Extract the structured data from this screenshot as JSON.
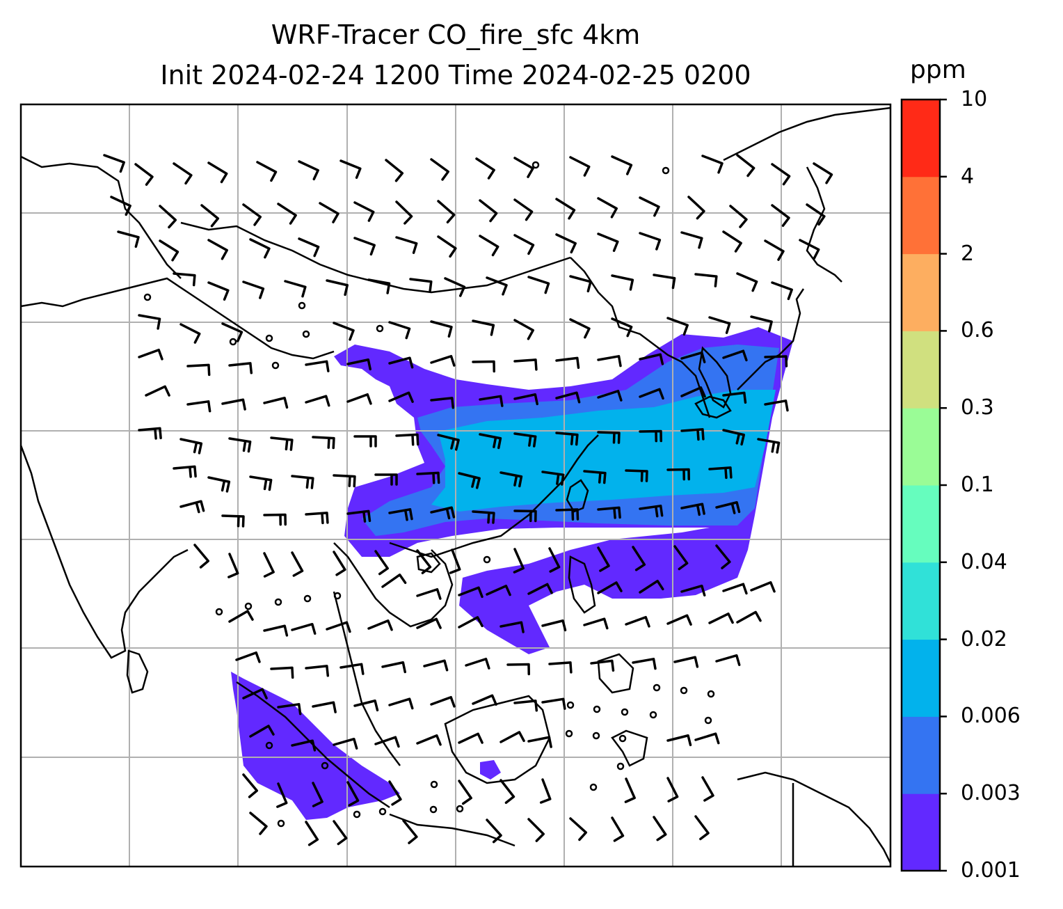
{
  "title": {
    "line1": "WRF-Tracer CO_fire_sfc 4km",
    "line2": "Init 2024-02-24 1200 Time 2024-02-25 0200"
  },
  "colorbar": {
    "unit": "ppm",
    "levels": [
      "0.001",
      "0.003",
      "0.006",
      "0.02",
      "0.04",
      "0.1",
      "0.3",
      "0.6",
      "2",
      "4",
      "10"
    ],
    "colors": [
      "#6229ff",
      "#3474f2",
      "#02b2ec",
      "#30e1d8",
      "#66fdbe",
      "#9afc96",
      "#d0e07f",
      "#fdae60",
      "#ff7137",
      "#ff2a17"
    ]
  },
  "colors": {
    "coastline": "#000000",
    "gridline": "#b0b0b0",
    "wind_barb": "#000000"
  }
}
